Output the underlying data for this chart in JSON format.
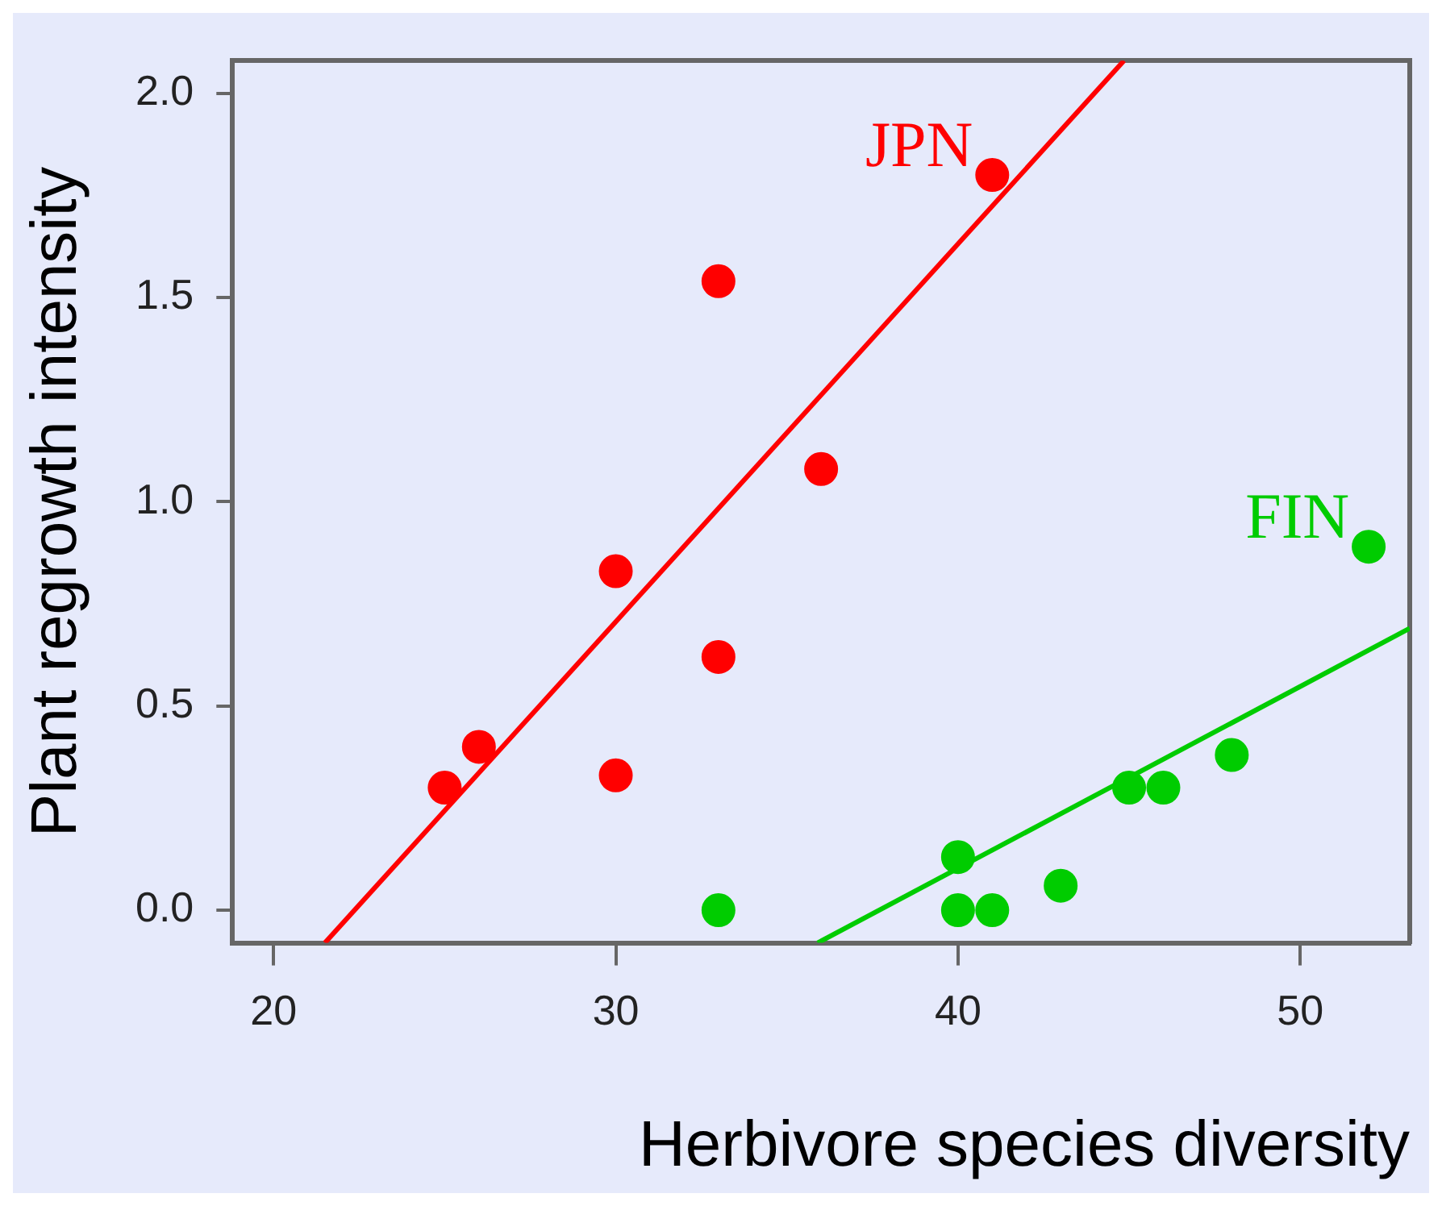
{
  "chart_data": {
    "type": "scatter",
    "xlabel": "Herbivore species diversity",
    "ylabel": "Plant regrowth intensity",
    "xlim": [
      18.8,
      53.2
    ],
    "ylim": [
      -0.08,
      2.08
    ],
    "xticks": [
      20,
      30,
      40,
      50
    ],
    "yticks": [
      {
        "value": 0,
        "label": "0.0"
      },
      {
        "value": 0.5,
        "label": "0.5"
      },
      {
        "value": 1,
        "label": "1.0"
      },
      {
        "value": 1.5,
        "label": "1.5"
      },
      {
        "value": 2,
        "label": "2.0"
      }
    ],
    "grid": false,
    "legend": false,
    "series": [
      {
        "name": "JPN",
        "color": "#ff0000",
        "marker": "circle",
        "x": [
          25,
          26,
          30,
          30,
          33,
          33,
          36,
          41
        ],
        "values": [
          0.3,
          0.4,
          0.33,
          0.83,
          0.62,
          1.54,
          1.08,
          1.8
        ]
      },
      {
        "name": "FIN",
        "color": "#00cc00",
        "marker": "circle",
        "x": [
          33,
          40,
          40,
          41,
          43,
          45,
          46,
          48,
          52
        ],
        "values": [
          0,
          0.13,
          0,
          0,
          0.06,
          0.3,
          0.3,
          0.38,
          0.89
        ]
      },
      {
        "type": "line",
        "color": "#ff0000",
        "marker": "none",
        "x": [
          21.5,
          44.85
        ],
        "values": [
          -0.08,
          2.08
        ]
      },
      {
        "type": "line",
        "color": "#00cc00",
        "marker": "none",
        "x": [
          35.9,
          53.2
        ],
        "values": [
          -0.08,
          0.69
        ]
      }
    ]
  }
}
